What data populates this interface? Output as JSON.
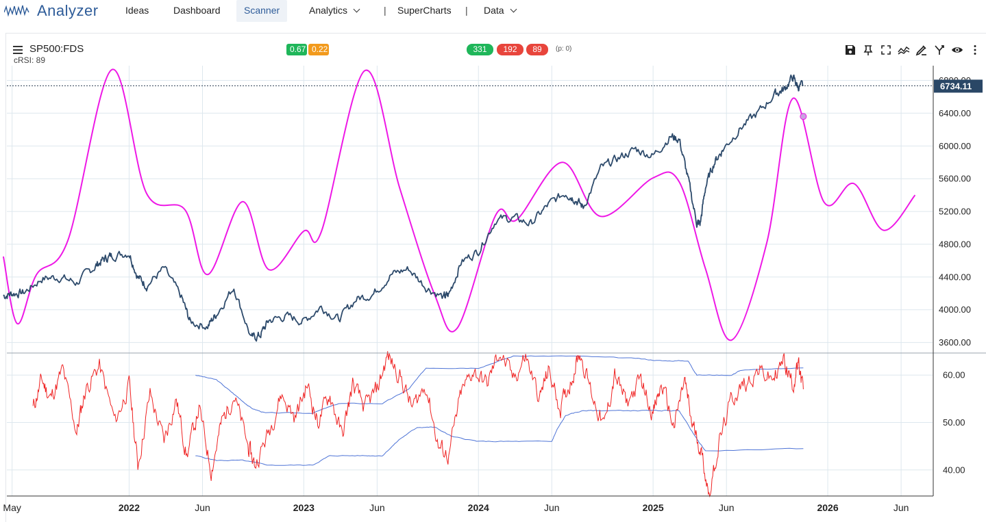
{
  "nav": {
    "logo_text": "Analyzer",
    "items": [
      {
        "label": "Ideas"
      },
      {
        "label": "Dashboard"
      },
      {
        "label": "Scanner"
      },
      {
        "label": "Analytics"
      },
      {
        "label": "SuperCharts"
      },
      {
        "label": "Data"
      }
    ],
    "separator": "|"
  },
  "chart_header": {
    "symbol": "SP500:FDS",
    "indicator": "cRSI: 89",
    "badges_left": [
      {
        "value": "0.67",
        "color": "#1fb65a"
      },
      {
        "value": "0.22",
        "color": "#f29a1c"
      }
    ],
    "badges_right": [
      {
        "value": "331",
        "color": "#1fb65a"
      },
      {
        "value": "192",
        "color": "#e8453c"
      },
      {
        "value": "89",
        "color": "#e8453c"
      }
    ],
    "p_stat": "(p: 0)"
  },
  "toolbar": {
    "icons": [
      "save-icon",
      "pin-icon",
      "fullscreen-icon",
      "compare-icon",
      "draw-icon",
      "fork-icon",
      "eye-icon",
      "more-icon"
    ]
  },
  "chart_data": {
    "type": "line",
    "x_ticks": [
      {
        "label": "May",
        "bold": false,
        "date": 2021.33
      },
      {
        "label": "2022",
        "bold": true,
        "date": 2022.0
      },
      {
        "label": "Jun",
        "bold": false,
        "date": 2022.42
      },
      {
        "label": "2023",
        "bold": true,
        "date": 2023.0
      },
      {
        "label": "Jun",
        "bold": false,
        "date": 2023.42
      },
      {
        "label": "2024",
        "bold": true,
        "date": 2024.0
      },
      {
        "label": "Jun",
        "bold": false,
        "date": 2024.42
      },
      {
        "label": "2025",
        "bold": true,
        "date": 2025.0
      },
      {
        "label": "Jun",
        "bold": false,
        "date": 2025.42
      },
      {
        "label": "2026",
        "bold": true,
        "date": 2026.0
      },
      {
        "label": "Jun",
        "bold": false,
        "date": 2026.42
      }
    ],
    "x_range": [
      2021.3,
      2026.6
    ],
    "price_panel": {
      "y_ticks": [
        "3600.00",
        "4000.00",
        "4400.00",
        "4800.00",
        "5200.00",
        "5600.00",
        "6000.00",
        "6400.00",
        "6800.00"
      ],
      "ylim": [
        3480,
        6980
      ],
      "last_price_label": "6734.11",
      "last_price": 6734.11,
      "highlight_point": {
        "x": 2025.86,
        "y": 6360
      },
      "price_series": {
        "name": "SP500:FDS",
        "color": "#2d4a6b",
        "x": [
          2021.28,
          2021.33,
          2021.4,
          2021.5,
          2021.6,
          2021.7,
          2021.8,
          2021.85,
          2021.9,
          2022.0,
          2022.05,
          2022.1,
          2022.2,
          2022.3,
          2022.35,
          2022.45,
          2022.5,
          2022.6,
          2022.7,
          2022.75,
          2022.8,
          2022.9,
          2023.0,
          2023.1,
          2023.2,
          2023.3,
          2023.4,
          2023.5,
          2023.6,
          2023.7,
          2023.8,
          2023.83,
          2023.9,
          2024.0,
          2024.1,
          2024.2,
          2024.3,
          2024.4,
          2024.5,
          2024.55,
          2024.6,
          2024.7,
          2024.8,
          2024.9,
          2025.0,
          2025.1,
          2025.15,
          2025.2,
          2025.25,
          2025.27,
          2025.3,
          2025.35,
          2025.4,
          2025.5,
          2025.6,
          2025.7,
          2025.75,
          2025.8,
          2025.83,
          2025.86
        ],
        "y": [
          4170,
          4200,
          4210,
          4380,
          4400,
          4330,
          4520,
          4610,
          4660,
          4700,
          4400,
          4300,
          4500,
          4150,
          3850,
          3800,
          3950,
          4280,
          3650,
          3690,
          3870,
          3920,
          3860,
          4040,
          3880,
          4130,
          4200,
          4430,
          4500,
          4280,
          4150,
          4180,
          4580,
          4720,
          5100,
          5120,
          5050,
          5280,
          5430,
          5360,
          5250,
          5720,
          5850,
          5960,
          5880,
          6120,
          6080,
          5600,
          5060,
          5050,
          5500,
          5800,
          5960,
          6220,
          6400,
          6640,
          6690,
          6840,
          6720,
          6734
        ]
      },
      "cycle_series": {
        "name": "cycle",
        "color": "#ee18e6",
        "x": [
          2021.28,
          2021.36,
          2021.47,
          2021.65,
          2021.9,
          2022.1,
          2022.32,
          2022.45,
          2022.65,
          2022.8,
          2023.0,
          2023.1,
          2023.35,
          2023.55,
          2023.75,
          2023.88,
          2024.1,
          2024.22,
          2024.48,
          2024.7,
          2025.0,
          2025.15,
          2025.3,
          2025.45,
          2025.65,
          2025.8,
          2025.98,
          2026.15,
          2026.32,
          2026.5
        ],
        "y": [
          4650,
          3830,
          4430,
          4850,
          6930,
          5420,
          5220,
          4430,
          5320,
          4490,
          4960,
          4950,
          6920,
          5480,
          4180,
          3780,
          5160,
          5100,
          5800,
          5140,
          5610,
          5560,
          4500,
          3630,
          4810,
          6580,
          5310,
          5540,
          4970,
          5400
        ]
      }
    },
    "indicator_panel": {
      "y_ticks": [
        "40.00",
        "50.00",
        "60.00"
      ],
      "ylim": [
        34.5,
        64.5
      ],
      "crsi_series": {
        "name": "cRSI",
        "color": "#ef2222",
        "x": [
          2021.45,
          2021.5,
          2021.55,
          2021.62,
          2021.7,
          2021.75,
          2021.83,
          2021.92,
          2022.0,
          2022.05,
          2022.12,
          2022.2,
          2022.27,
          2022.33,
          2022.4,
          2022.47,
          2022.53,
          2022.6,
          2022.68,
          2022.72,
          2022.8,
          2022.87,
          2022.95,
          2023.02,
          2023.08,
          2023.15,
          2023.22,
          2023.28,
          2023.35,
          2023.42,
          2023.48,
          2023.55,
          2023.62,
          2023.7,
          2023.77,
          2023.83,
          2023.9,
          2023.97,
          2024.05,
          2024.12,
          2024.2,
          2024.27,
          2024.35,
          2024.4,
          2024.47,
          2024.53,
          2024.58,
          2024.65,
          2024.72,
          2024.78,
          2024.85,
          2024.93,
          2025.0,
          2025.05,
          2025.12,
          2025.18,
          2025.22,
          2025.27,
          2025.32,
          2025.38,
          2025.45,
          2025.52,
          2025.6,
          2025.68,
          2025.75,
          2025.8,
          2025.83,
          2025.86
        ],
        "y": [
          53,
          59,
          55,
          61,
          48,
          57,
          62,
          50,
          58,
          41,
          56,
          46,
          55,
          43,
          53,
          40,
          50,
          56,
          45,
          41,
          48,
          56,
          51,
          58,
          50,
          56,
          47,
          58,
          53,
          57,
          64,
          60,
          53,
          58,
          45,
          43,
          56,
          61,
          58,
          65,
          59,
          64,
          55,
          61,
          53,
          59,
          65,
          56,
          49,
          60,
          54,
          59,
          52,
          58,
          49,
          59,
          50,
          45,
          35,
          46,
          55,
          58,
          61,
          59,
          63,
          58,
          62,
          57
        ]
      },
      "upper_band": {
        "name": "upper band",
        "color": "#4d73d6",
        "x": [
          2022.38,
          2022.5,
          2022.6,
          2022.7,
          2022.78,
          2023.05,
          2023.2,
          2023.45,
          2023.6,
          2023.7,
          2024.0,
          2024.2,
          2024.55,
          2024.9,
          2025.05,
          2025.2,
          2025.25,
          2025.45,
          2025.5,
          2025.86
        ],
        "y": [
          60,
          59,
          56,
          53,
          52,
          52,
          54,
          54,
          57,
          61.5,
          61.5,
          64,
          64,
          63.5,
          63,
          63,
          60,
          60,
          61,
          61.5
        ]
      },
      "lower_band": {
        "name": "lower band",
        "color": "#4d73d6",
        "x": [
          2022.38,
          2022.5,
          2022.65,
          2022.8,
          2023.05,
          2023.15,
          2023.35,
          2023.45,
          2023.55,
          2023.65,
          2023.75,
          2023.85,
          2024.0,
          2024.2,
          2024.42,
          2024.45,
          2024.5,
          2024.6,
          2024.7,
          2024.9,
          2025.05,
          2025.15,
          2025.25,
          2025.3,
          2025.86
        ],
        "y": [
          43,
          42,
          42,
          41,
          41,
          43,
          43,
          43,
          46.5,
          49,
          49,
          47,
          46,
          46,
          46,
          48.5,
          51.5,
          52.5,
          52.5,
          52.5,
          52.5,
          52.5,
          46.5,
          44,
          44.5
        ]
      }
    }
  }
}
